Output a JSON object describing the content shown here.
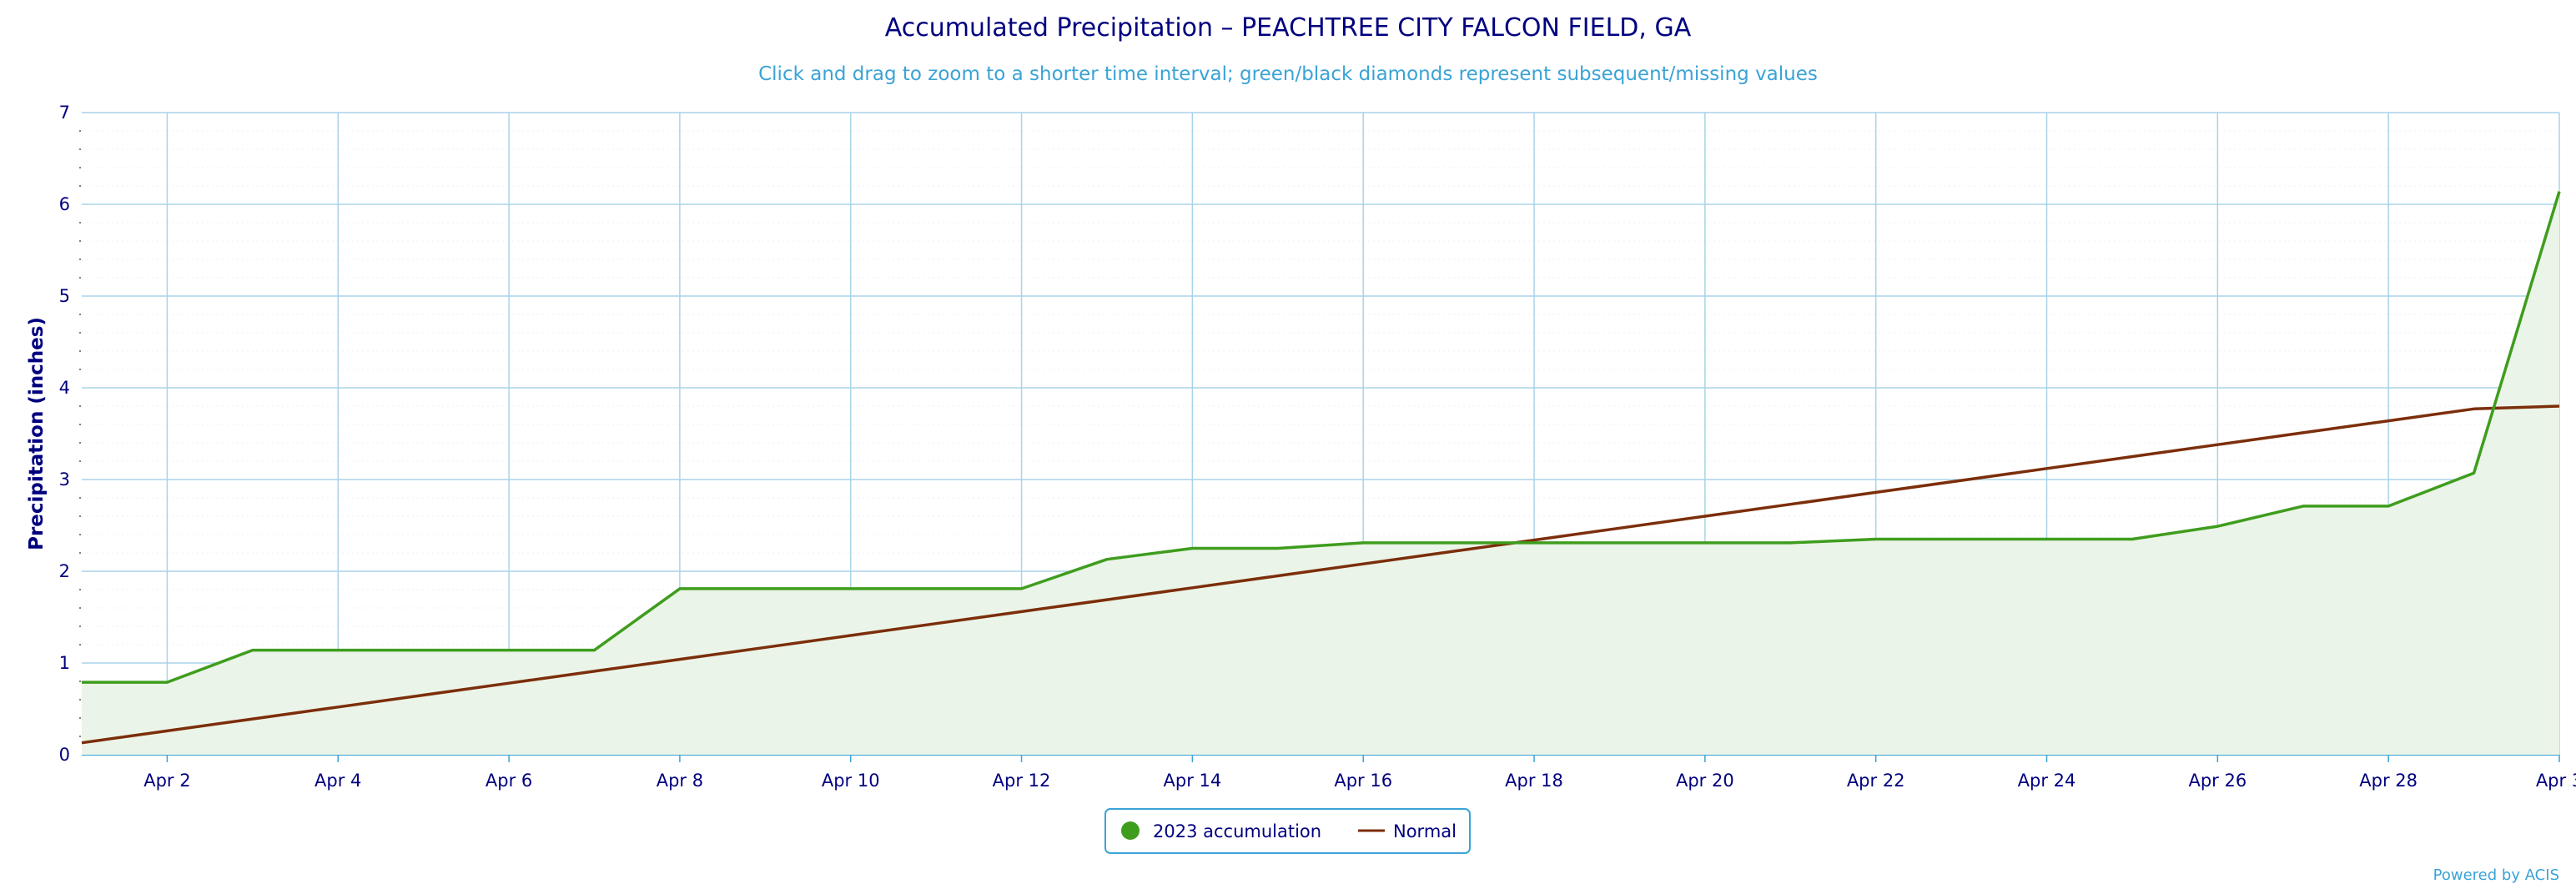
{
  "chart_data": {
    "type": "line",
    "title": "Accumulated Precipitation – PEACHTREE CITY FALCON FIELD, GA",
    "subtitle": "Click and drag to zoom to a shorter time interval; green/black diamonds represent subsequent/missing values",
    "xlabel": "",
    "ylabel": "Precipitation (inches)",
    "ylim": [
      0,
      7
    ],
    "yticks": [
      "0",
      "1",
      "2",
      "3",
      "4",
      "5",
      "6",
      "7"
    ],
    "x_tick_labels": [
      "Apr 2",
      "Apr 4",
      "Apr 6",
      "Apr 8",
      "Apr 10",
      "Apr 12",
      "Apr 14",
      "Apr 16",
      "Apr 18",
      "Apr 20",
      "Apr 22",
      "Apr 24",
      "Apr 26",
      "Apr 28",
      "Apr 3"
    ],
    "x": [
      "Apr 1",
      "Apr 2",
      "Apr 3",
      "Apr 4",
      "Apr 5",
      "Apr 6",
      "Apr 7",
      "Apr 8",
      "Apr 9",
      "Apr 10",
      "Apr 11",
      "Apr 12",
      "Apr 13",
      "Apr 14",
      "Apr 15",
      "Apr 16",
      "Apr 17",
      "Apr 18",
      "Apr 19",
      "Apr 20",
      "Apr 21",
      "Apr 22",
      "Apr 23",
      "Apr 24",
      "Apr 25",
      "Apr 26",
      "Apr 27",
      "Apr 28",
      "Apr 29",
      "Apr 30"
    ],
    "grid": true,
    "legend_placement": "bottom-center",
    "series": [
      {
        "name": "2023 accumulation",
        "color": "#3f9d1e",
        "fill": "#ebf4e8",
        "values": [
          0.79,
          0.79,
          1.14,
          1.14,
          1.14,
          1.14,
          1.14,
          1.81,
          1.81,
          1.81,
          1.81,
          1.81,
          2.13,
          2.25,
          2.25,
          2.31,
          2.31,
          2.31,
          2.31,
          2.31,
          2.31,
          2.35,
          2.35,
          2.35,
          2.35,
          2.49,
          2.71,
          2.71,
          3.07,
          6.14
        ]
      },
      {
        "name": "Normal",
        "color": "#7c2e0a",
        "values": [
          0.13,
          0.26,
          0.39,
          0.52,
          0.65,
          0.78,
          0.91,
          1.04,
          1.17,
          1.3,
          1.43,
          1.56,
          1.69,
          1.82,
          1.95,
          2.08,
          2.21,
          2.34,
          2.47,
          2.6,
          2.73,
          2.86,
          2.99,
          3.12,
          3.25,
          3.38,
          3.51,
          3.64,
          3.77,
          3.8
        ]
      }
    ]
  },
  "footer": {
    "credits": "Powered by ACIS"
  }
}
